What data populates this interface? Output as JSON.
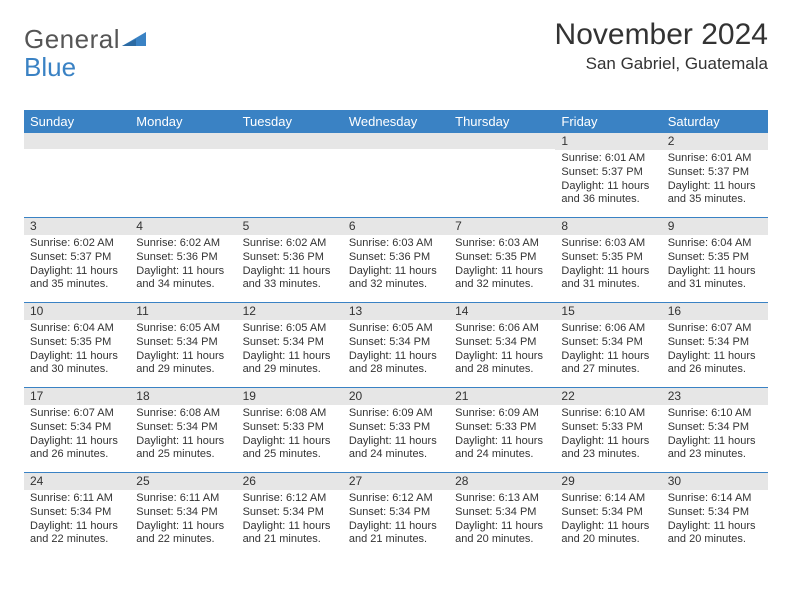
{
  "logo": {
    "text1": "General",
    "text2": "Blue"
  },
  "title": "November 2024",
  "location": "San Gabriel, Guatemala",
  "theme": {
    "accent": "#3a82c4",
    "header_bg": "#3a82c4",
    "header_text": "#ffffff",
    "daynum_bg": "#e6e6e6",
    "text": "#333333",
    "title_fontsize": 30,
    "location_fontsize": 17,
    "dayhead_fontsize": 13,
    "cell_fontsize": 11
  },
  "day_names": [
    "Sunday",
    "Monday",
    "Tuesday",
    "Wednesday",
    "Thursday",
    "Friday",
    "Saturday"
  ],
  "weeks": [
    [
      {
        "blank": true
      },
      {
        "blank": true
      },
      {
        "blank": true
      },
      {
        "blank": true
      },
      {
        "blank": true
      },
      {
        "day": "1",
        "sunrise": "Sunrise: 6:01 AM",
        "sunset": "Sunset: 5:37 PM",
        "daylight": "Daylight: 11 hours and 36 minutes."
      },
      {
        "day": "2",
        "sunrise": "Sunrise: 6:01 AM",
        "sunset": "Sunset: 5:37 PM",
        "daylight": "Daylight: 11 hours and 35 minutes."
      }
    ],
    [
      {
        "day": "3",
        "sunrise": "Sunrise: 6:02 AM",
        "sunset": "Sunset: 5:37 PM",
        "daylight": "Daylight: 11 hours and 35 minutes."
      },
      {
        "day": "4",
        "sunrise": "Sunrise: 6:02 AM",
        "sunset": "Sunset: 5:36 PM",
        "daylight": "Daylight: 11 hours and 34 minutes."
      },
      {
        "day": "5",
        "sunrise": "Sunrise: 6:02 AM",
        "sunset": "Sunset: 5:36 PM",
        "daylight": "Daylight: 11 hours and 33 minutes."
      },
      {
        "day": "6",
        "sunrise": "Sunrise: 6:03 AM",
        "sunset": "Sunset: 5:36 PM",
        "daylight": "Daylight: 11 hours and 32 minutes."
      },
      {
        "day": "7",
        "sunrise": "Sunrise: 6:03 AM",
        "sunset": "Sunset: 5:35 PM",
        "daylight": "Daylight: 11 hours and 32 minutes."
      },
      {
        "day": "8",
        "sunrise": "Sunrise: 6:03 AM",
        "sunset": "Sunset: 5:35 PM",
        "daylight": "Daylight: 11 hours and 31 minutes."
      },
      {
        "day": "9",
        "sunrise": "Sunrise: 6:04 AM",
        "sunset": "Sunset: 5:35 PM",
        "daylight": "Daylight: 11 hours and 31 minutes."
      }
    ],
    [
      {
        "day": "10",
        "sunrise": "Sunrise: 6:04 AM",
        "sunset": "Sunset: 5:35 PM",
        "daylight": "Daylight: 11 hours and 30 minutes."
      },
      {
        "day": "11",
        "sunrise": "Sunrise: 6:05 AM",
        "sunset": "Sunset: 5:34 PM",
        "daylight": "Daylight: 11 hours and 29 minutes."
      },
      {
        "day": "12",
        "sunrise": "Sunrise: 6:05 AM",
        "sunset": "Sunset: 5:34 PM",
        "daylight": "Daylight: 11 hours and 29 minutes."
      },
      {
        "day": "13",
        "sunrise": "Sunrise: 6:05 AM",
        "sunset": "Sunset: 5:34 PM",
        "daylight": "Daylight: 11 hours and 28 minutes."
      },
      {
        "day": "14",
        "sunrise": "Sunrise: 6:06 AM",
        "sunset": "Sunset: 5:34 PM",
        "daylight": "Daylight: 11 hours and 28 minutes."
      },
      {
        "day": "15",
        "sunrise": "Sunrise: 6:06 AM",
        "sunset": "Sunset: 5:34 PM",
        "daylight": "Daylight: 11 hours and 27 minutes."
      },
      {
        "day": "16",
        "sunrise": "Sunrise: 6:07 AM",
        "sunset": "Sunset: 5:34 PM",
        "daylight": "Daylight: 11 hours and 26 minutes."
      }
    ],
    [
      {
        "day": "17",
        "sunrise": "Sunrise: 6:07 AM",
        "sunset": "Sunset: 5:34 PM",
        "daylight": "Daylight: 11 hours and 26 minutes."
      },
      {
        "day": "18",
        "sunrise": "Sunrise: 6:08 AM",
        "sunset": "Sunset: 5:34 PM",
        "daylight": "Daylight: 11 hours and 25 minutes."
      },
      {
        "day": "19",
        "sunrise": "Sunrise: 6:08 AM",
        "sunset": "Sunset: 5:33 PM",
        "daylight": "Daylight: 11 hours and 25 minutes."
      },
      {
        "day": "20",
        "sunrise": "Sunrise: 6:09 AM",
        "sunset": "Sunset: 5:33 PM",
        "daylight": "Daylight: 11 hours and 24 minutes."
      },
      {
        "day": "21",
        "sunrise": "Sunrise: 6:09 AM",
        "sunset": "Sunset: 5:33 PM",
        "daylight": "Daylight: 11 hours and 24 minutes."
      },
      {
        "day": "22",
        "sunrise": "Sunrise: 6:10 AM",
        "sunset": "Sunset: 5:33 PM",
        "daylight": "Daylight: 11 hours and 23 minutes."
      },
      {
        "day": "23",
        "sunrise": "Sunrise: 6:10 AM",
        "sunset": "Sunset: 5:34 PM",
        "daylight": "Daylight: 11 hours and 23 minutes."
      }
    ],
    [
      {
        "day": "24",
        "sunrise": "Sunrise: 6:11 AM",
        "sunset": "Sunset: 5:34 PM",
        "daylight": "Daylight: 11 hours and 22 minutes."
      },
      {
        "day": "25",
        "sunrise": "Sunrise: 6:11 AM",
        "sunset": "Sunset: 5:34 PM",
        "daylight": "Daylight: 11 hours and 22 minutes."
      },
      {
        "day": "26",
        "sunrise": "Sunrise: 6:12 AM",
        "sunset": "Sunset: 5:34 PM",
        "daylight": "Daylight: 11 hours and 21 minutes."
      },
      {
        "day": "27",
        "sunrise": "Sunrise: 6:12 AM",
        "sunset": "Sunset: 5:34 PM",
        "daylight": "Daylight: 11 hours and 21 minutes."
      },
      {
        "day": "28",
        "sunrise": "Sunrise: 6:13 AM",
        "sunset": "Sunset: 5:34 PM",
        "daylight": "Daylight: 11 hours and 20 minutes."
      },
      {
        "day": "29",
        "sunrise": "Sunrise: 6:14 AM",
        "sunset": "Sunset: 5:34 PM",
        "daylight": "Daylight: 11 hours and 20 minutes."
      },
      {
        "day": "30",
        "sunrise": "Sunrise: 6:14 AM",
        "sunset": "Sunset: 5:34 PM",
        "daylight": "Daylight: 11 hours and 20 minutes."
      }
    ]
  ]
}
